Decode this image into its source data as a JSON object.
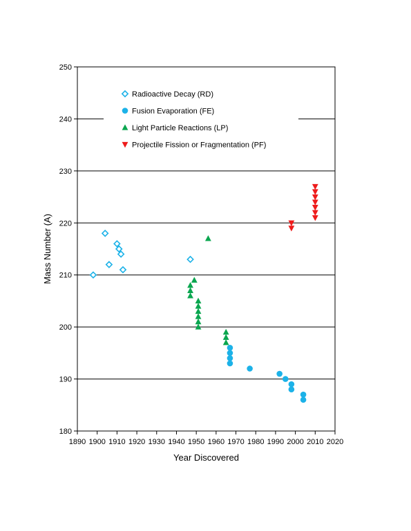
{
  "chart_data": {
    "type": "scatter",
    "xlabel": "Year Discovered",
    "ylabel": "Mass Number (A)",
    "xlim": [
      1890,
      2020
    ],
    "ylim": [
      180,
      250
    ],
    "x_ticks": [
      1890,
      1900,
      1910,
      1920,
      1930,
      1940,
      1950,
      1960,
      1970,
      1980,
      1990,
      2000,
      2010,
      2020
    ],
    "y_ticks": [
      180,
      190,
      200,
      210,
      220,
      230,
      240,
      250
    ],
    "y_gridlines": true,
    "legend_position": "top-left inside plot",
    "series": [
      {
        "name": "Radioactive Decay (RD)",
        "marker": "open-diamond",
        "color": "#1cb2e8",
        "points": [
          [
            1898,
            210
          ],
          [
            1904,
            218
          ],
          [
            1906,
            212
          ],
          [
            1910,
            216
          ],
          [
            1911,
            215
          ],
          [
            1912,
            214
          ],
          [
            1913,
            211
          ],
          [
            1947,
            213
          ]
        ]
      },
      {
        "name": "Fusion Evaporation (FE)",
        "marker": "filled-circle",
        "color": "#1cb2e8",
        "points": [
          [
            1967,
            196
          ],
          [
            1967,
            195
          ],
          [
            1967,
            194
          ],
          [
            1967,
            193
          ],
          [
            1977,
            192
          ],
          [
            1992,
            191
          ],
          [
            1995,
            190
          ],
          [
            1998,
            189
          ],
          [
            1998,
            188
          ],
          [
            2004,
            187
          ],
          [
            2004,
            186
          ]
        ]
      },
      {
        "name": "Light Particle Reactions (LP)",
        "marker": "filled-triangle-up",
        "color": "#0aa64f",
        "points": [
          [
            1947,
            208
          ],
          [
            1947,
            207
          ],
          [
            1947,
            206
          ],
          [
            1949,
            209
          ],
          [
            1951,
            205
          ],
          [
            1951,
            204
          ],
          [
            1951,
            203
          ],
          [
            1951,
            202
          ],
          [
            1951,
            201
          ],
          [
            1951,
            200
          ],
          [
            1956,
            217
          ],
          [
            1965,
            199
          ],
          [
            1965,
            198
          ],
          [
            1965,
            197
          ]
        ]
      },
      {
        "name": "Projectile Fission or Fragmentation (PF)",
        "marker": "filled-triangle-down",
        "color": "#ee1c1c",
        "points": [
          [
            1998,
            220
          ],
          [
            1998,
            219
          ],
          [
            2010,
            227
          ],
          [
            2010,
            226
          ],
          [
            2010,
            225
          ],
          [
            2010,
            224
          ],
          [
            2010,
            223
          ],
          [
            2010,
            222
          ],
          [
            2010,
            221
          ]
        ]
      }
    ]
  }
}
